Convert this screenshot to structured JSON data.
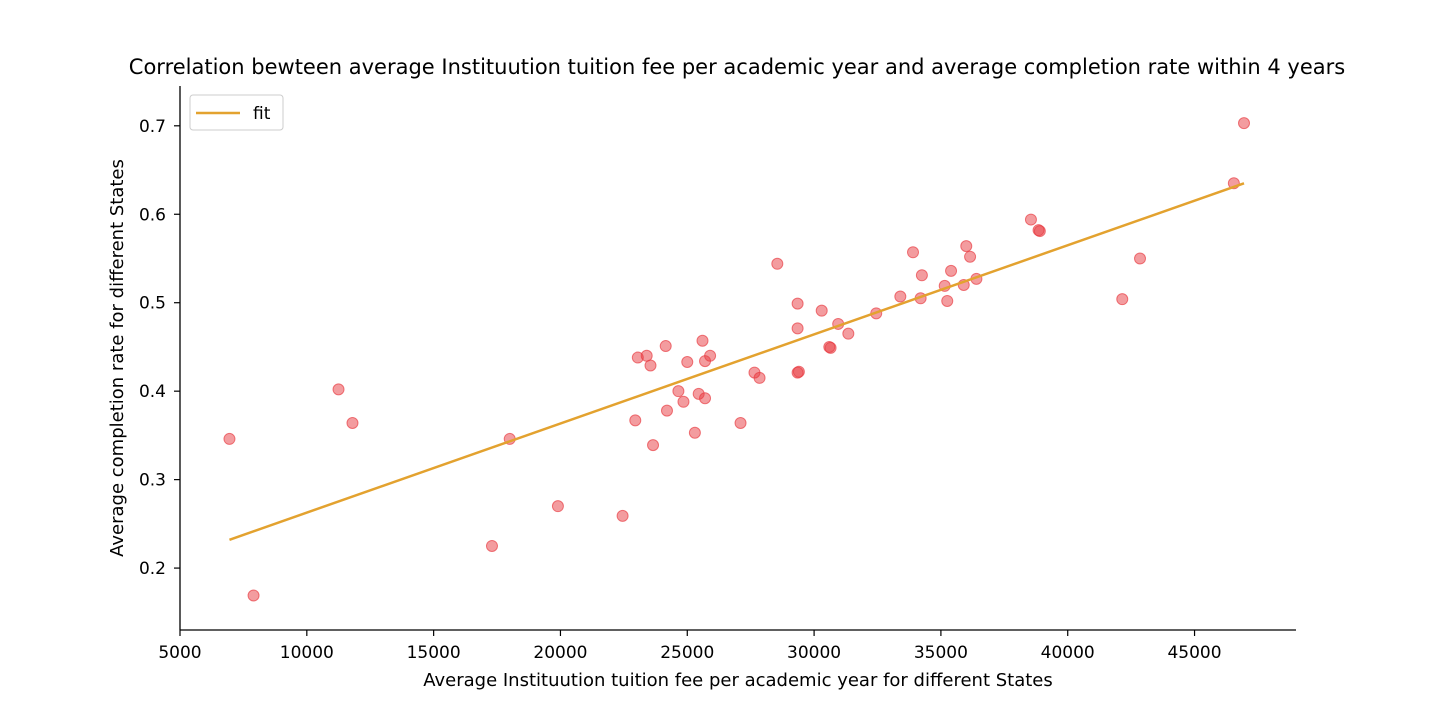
{
  "chart_data": {
    "type": "scatter",
    "title": "Correlation bewteen average Instituution tuition fee per academic year and average completion rate within 4 years",
    "xlabel": "Average Instituution tuition fee per academic year for different States",
    "ylabel": "Average completion rate for different States",
    "xlim": [
      5000,
      49000
    ],
    "ylim": [
      0.13,
      0.745
    ],
    "xticks": [
      5000,
      10000,
      15000,
      20000,
      25000,
      30000,
      35000,
      40000,
      45000
    ],
    "yticks": [
      0.2,
      0.3,
      0.4,
      0.5,
      0.6,
      0.7
    ],
    "ytick_labels": [
      "0.2",
      "0.3",
      "0.4",
      "0.5",
      "0.6",
      "0.7"
    ],
    "grid": false,
    "legend_position": "top-left",
    "colors": {
      "points": "#e8393f",
      "fit": "#e3a22f"
    },
    "series": [
      {
        "name": "",
        "kind": "scatter",
        "points": [
          [
            6950,
            0.346
          ],
          [
            7900,
            0.169
          ],
          [
            11250,
            0.402
          ],
          [
            11800,
            0.364
          ],
          [
            17300,
            0.225
          ],
          [
            18000,
            0.346
          ],
          [
            19900,
            0.27
          ],
          [
            22450,
            0.259
          ],
          [
            22950,
            0.367
          ],
          [
            23050,
            0.438
          ],
          [
            23400,
            0.44
          ],
          [
            23550,
            0.429
          ],
          [
            23650,
            0.339
          ],
          [
            24150,
            0.451
          ],
          [
            24200,
            0.378
          ],
          [
            24650,
            0.4
          ],
          [
            24850,
            0.388
          ],
          [
            25000,
            0.433
          ],
          [
            25300,
            0.353
          ],
          [
            25450,
            0.397
          ],
          [
            25600,
            0.457
          ],
          [
            25700,
            0.434
          ],
          [
            25700,
            0.392
          ],
          [
            25900,
            0.44
          ],
          [
            27100,
            0.364
          ],
          [
            27650,
            0.421
          ],
          [
            27850,
            0.415
          ],
          [
            28550,
            0.544
          ],
          [
            29350,
            0.499
          ],
          [
            29350,
            0.471
          ],
          [
            29350,
            0.421
          ],
          [
            29400,
            0.422
          ],
          [
            30300,
            0.491
          ],
          [
            30600,
            0.45
          ],
          [
            30650,
            0.449
          ],
          [
            30950,
            0.476
          ],
          [
            31350,
            0.465
          ],
          [
            32450,
            0.488
          ],
          [
            33400,
            0.507
          ],
          [
            33900,
            0.557
          ],
          [
            34200,
            0.505
          ],
          [
            34250,
            0.531
          ],
          [
            35150,
            0.519
          ],
          [
            35250,
            0.502
          ],
          [
            35400,
            0.536
          ],
          [
            35900,
            0.52
          ],
          [
            36000,
            0.564
          ],
          [
            36150,
            0.552
          ],
          [
            36400,
            0.527
          ],
          [
            38550,
            0.594
          ],
          [
            38850,
            0.582
          ],
          [
            38900,
            0.581
          ],
          [
            42150,
            0.504
          ],
          [
            42850,
            0.55
          ],
          [
            46550,
            0.635
          ],
          [
            46950,
            0.703
          ]
        ]
      },
      {
        "name": "fit",
        "kind": "line",
        "points": [
          [
            6950,
            0.232
          ],
          [
            46950,
            0.635
          ]
        ]
      }
    ]
  }
}
